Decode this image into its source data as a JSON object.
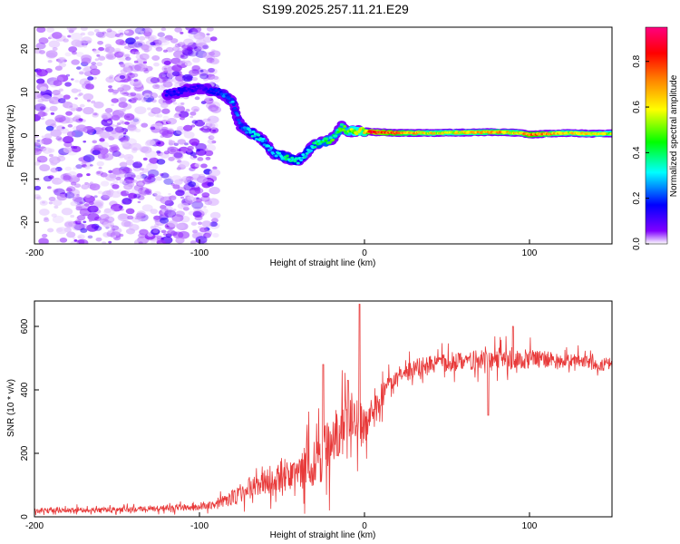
{
  "figure_title": "S199.2025.257.11.21.E29",
  "chart_data": [
    {
      "type": "heatmap",
      "title": "S199.2025.257.11.21.E29",
      "xlabel": "Height of straight line (km)",
      "ylabel": "Frequency (Hz)",
      "xlim": [
        -200,
        150
      ],
      "ylim": [
        -25,
        25
      ],
      "x_ticks": [
        -200,
        -100,
        0,
        100
      ],
      "x_tick_labels": [
        "-200",
        "-100",
        "0",
        "100"
      ],
      "y_ticks": [
        -20,
        -10,
        0,
        10,
        20
      ],
      "y_tick_labels": [
        "-20",
        "-10",
        "0",
        "10",
        "20"
      ],
      "colorbar": {
        "label": "Normalized spectral amplitude",
        "range": [
          0,
          0.95
        ],
        "ticks": [
          0,
          0.2,
          0.4,
          0.6,
          0.8
        ],
        "tick_labels": [
          "0.0",
          "0.2",
          "0.4",
          "0.6",
          "0.8"
        ],
        "colormap": [
          "#ffffff",
          "#8000ff",
          "#0000ff",
          "#00ffff",
          "#00ff00",
          "#ffff00",
          "#ff8000",
          "#ff0000",
          "#ff0080"
        ]
      },
      "noise_region": {
        "x": [
          -200,
          -90
        ],
        "y": [
          -25,
          25
        ],
        "amplitude": [
          0.02,
          0.18
        ]
      },
      "ridge": [
        {
          "x": -120,
          "y": 9.5,
          "amp": 0.22
        },
        {
          "x": -100,
          "y": 11,
          "amp": 0.18
        },
        {
          "x": -88,
          "y": 10,
          "amp": 0.25
        },
        {
          "x": -80,
          "y": 8,
          "amp": 0.3
        },
        {
          "x": -75,
          "y": 2,
          "amp": 0.25
        },
        {
          "x": -70,
          "y": 1,
          "amp": 0.35
        },
        {
          "x": -62,
          "y": -1,
          "amp": 0.35
        },
        {
          "x": -55,
          "y": -4,
          "amp": 0.3
        },
        {
          "x": -48,
          "y": -5,
          "amp": 0.4
        },
        {
          "x": -40,
          "y": -6,
          "amp": 0.35
        },
        {
          "x": -30,
          "y": -2,
          "amp": 0.4
        },
        {
          "x": -20,
          "y": -1,
          "amp": 0.45
        },
        {
          "x": -14,
          "y": 2,
          "amp": 0.45
        },
        {
          "x": -10,
          "y": 1,
          "amp": 0.5
        },
        {
          "x": 0,
          "y": 1,
          "amp": 0.6
        },
        {
          "x": 5,
          "y": 0.8,
          "amp": 0.85
        },
        {
          "x": 20,
          "y": 0.6,
          "amp": 0.7
        },
        {
          "x": 40,
          "y": 0.6,
          "amp": 0.6
        },
        {
          "x": 60,
          "y": 0.7,
          "amp": 0.6
        },
        {
          "x": 80,
          "y": 0.8,
          "amp": 0.65
        },
        {
          "x": 95,
          "y": 0.6,
          "amp": 0.6
        },
        {
          "x": 100,
          "y": 0.2,
          "amp": 0.75
        },
        {
          "x": 120,
          "y": 0.6,
          "amp": 0.6
        },
        {
          "x": 140,
          "y": 0.4,
          "amp": 0.6
        },
        {
          "x": 150,
          "y": 0.5,
          "amp": 0.55
        }
      ]
    },
    {
      "type": "line",
      "xlabel": "Height of straight line (km)",
      "ylabel": "SNR (10 * v/v)",
      "xlim": [
        -200,
        150
      ],
      "ylim": [
        0,
        680
      ],
      "x_ticks": [
        -200,
        -100,
        0,
        100
      ],
      "x_tick_labels": [
        "-200",
        "-100",
        "0",
        "100"
      ],
      "y_ticks": [
        0,
        200,
        400,
        600
      ],
      "y_tick_labels": [
        "0",
        "200",
        "400",
        "600"
      ],
      "series": [
        {
          "name": "SNR",
          "color": "#e83a3a",
          "x": [
            -200,
            -150,
            -100,
            -90,
            -80,
            -70,
            -60,
            -50,
            -40,
            -30,
            -20,
            -15,
            -10,
            -5,
            0,
            10,
            20,
            30,
            40,
            50,
            60,
            70,
            80,
            90,
            100,
            110,
            120,
            130,
            140,
            150
          ],
          "y": [
            20,
            22,
            30,
            40,
            60,
            90,
            110,
            120,
            140,
            180,
            230,
            270,
            300,
            330,
            280,
            380,
            430,
            470,
            480,
            485,
            490,
            495,
            500,
            500,
            500,
            495,
            490,
            495,
            480,
            480
          ],
          "noise": [
            12,
            12,
            14,
            18,
            35,
            50,
            55,
            60,
            80,
            120,
            140,
            140,
            130,
            120,
            80,
            60,
            45,
            40,
            40,
            40,
            40,
            45,
            45,
            50,
            50,
            40,
            30,
            30,
            30,
            30
          ],
          "peaks": [
            {
              "x": -3,
              "y": 670
            },
            {
              "x": -25,
              "y": 480
            },
            {
              "x": -10,
              "y": 430
            },
            {
              "x": 75,
              "y": 320
            },
            {
              "x": 90,
              "y": 600
            }
          ]
        }
      ]
    }
  ]
}
